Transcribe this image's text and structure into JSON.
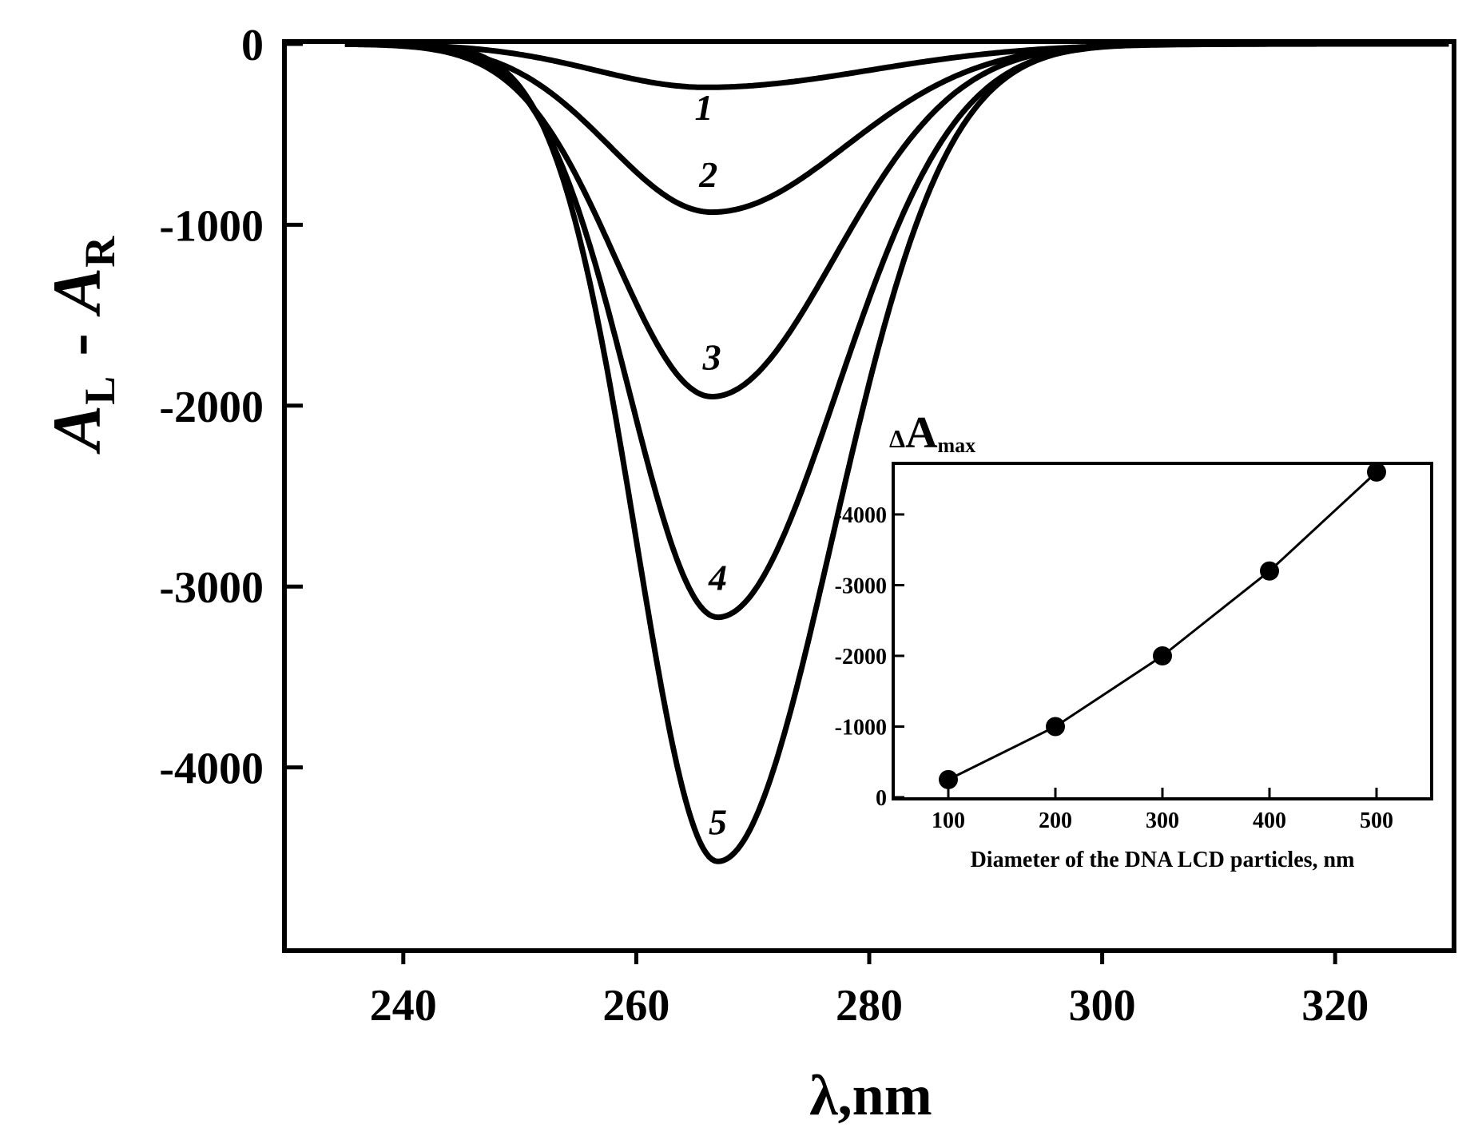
{
  "chart_data": [
    {
      "type": "line",
      "title": "",
      "xlabel": "λ,nm",
      "ylabel_parts": {
        "main1": "A",
        "sub1": "L",
        "dash": "-",
        "main2": "A",
        "sub2": "R"
      },
      "xlim": [
        230,
        330
      ],
      "ylim": [
        -5000,
        0
      ],
      "xticks": [
        240,
        260,
        280,
        300,
        320
      ],
      "yticks": [
        0,
        -1000,
        -2000,
        -3000,
        -4000
      ],
      "grid": false,
      "series": [
        {
          "name": "1",
          "start": 235,
          "peak_x": 266,
          "depth": -240,
          "left_sigma": 9.5,
          "right_sigma": 14.0,
          "label_x": 265.8,
          "label_y": -420
        },
        {
          "name": "2",
          "start": 235,
          "peak_x": 266.5,
          "depth": -930,
          "left_sigma": 8.8,
          "right_sigma": 11.5,
          "label_x": 266.2,
          "label_y": -790
        },
        {
          "name": "3",
          "start": 235,
          "peak_x": 266.5,
          "depth": -1950,
          "left_sigma": 8.3,
          "right_sigma": 10.5,
          "label_x": 266.5,
          "label_y": -1800
        },
        {
          "name": "4",
          "start": 235,
          "peak_x": 267,
          "depth": -3170,
          "left_sigma": 7.6,
          "right_sigma": 10.2,
          "label_x": 267.0,
          "label_y": -3020
        },
        {
          "name": "5",
          "start": 235,
          "peak_x": 267,
          "depth": -4520,
          "left_sigma": 7.0,
          "right_sigma": 9.8,
          "label_x": 267.0,
          "label_y": -4370
        }
      ]
    },
    {
      "type": "line",
      "title": "",
      "xlabel": "Diameter of the DNA LCD particles, nm",
      "ylabel_parts": {
        "prefix": "Δ",
        "main": "A",
        "sub": "max"
      },
      "xlim": [
        50,
        550
      ],
      "ylim": [
        0,
        -4700
      ],
      "xticks": [
        100,
        200,
        300,
        400,
        500
      ],
      "yticks": [
        0,
        -1000,
        -2000,
        -3000,
        -4000
      ],
      "grid": false,
      "points": {
        "x": [
          100,
          200,
          300,
          400,
          500
        ],
        "y": [
          -250,
          -1000,
          -2000,
          -3200,
          -4600
        ]
      }
    }
  ]
}
